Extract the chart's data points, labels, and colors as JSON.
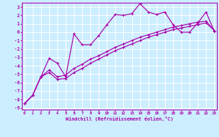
{
  "xlabel": "Windchill (Refroidissement éolien,°C)",
  "xlim": [
    -0.3,
    23.3
  ],
  "ylim": [
    -9.2,
    3.5
  ],
  "xticks": [
    0,
    1,
    2,
    3,
    4,
    5,
    6,
    7,
    8,
    9,
    10,
    11,
    12,
    13,
    14,
    15,
    16,
    17,
    18,
    19,
    20,
    21,
    22,
    23
  ],
  "yticks": [
    3,
    2,
    1,
    0,
    -1,
    -2,
    -3,
    -4,
    -5,
    -6,
    -7,
    -8,
    -9
  ],
  "color": "#aa00aa",
  "bg_color": "#cceeff",
  "grid_color": "#ffffff",
  "line_smooth1_x": [
    0,
    1,
    2,
    3,
    4,
    5,
    6,
    7,
    8,
    9,
    10,
    11,
    12,
    13,
    14,
    15,
    16,
    17,
    18,
    19,
    20,
    21,
    22,
    23
  ],
  "line_smooth1_y": [
    -8.5,
    -7.5,
    -5.3,
    -4.8,
    -5.6,
    -5.5,
    -4.8,
    -4.3,
    -3.7,
    -3.2,
    -2.7,
    -2.2,
    -1.8,
    -1.4,
    -1.0,
    -0.6,
    -0.3,
    0.0,
    0.3,
    0.5,
    0.7,
    0.9,
    1.1,
    0.2
  ],
  "line_smooth2_x": [
    0,
    1,
    2,
    3,
    4,
    5,
    6,
    7,
    8,
    9,
    10,
    11,
    12,
    13,
    14,
    15,
    16,
    17,
    18,
    19,
    20,
    21,
    22,
    23
  ],
  "line_smooth2_y": [
    -8.5,
    -7.5,
    -5.3,
    -4.5,
    -5.3,
    -5.1,
    -4.3,
    -3.8,
    -3.2,
    -2.8,
    -2.3,
    -1.8,
    -1.4,
    -1.0,
    -0.6,
    -0.3,
    0.0,
    0.3,
    0.6,
    0.8,
    1.0,
    1.2,
    1.3,
    0.2
  ],
  "line_wiggly_x": [
    0,
    1,
    2,
    3,
    4,
    5,
    6,
    7,
    8,
    9,
    10,
    11,
    12,
    13,
    14,
    15,
    16,
    17,
    18,
    19,
    20,
    21,
    22,
    23
  ],
  "line_wiggly_y": [
    -8.5,
    -7.5,
    -5.3,
    -3.1,
    -3.7,
    -5.3,
    -0.2,
    -1.5,
    -1.5,
    -0.4,
    0.9,
    2.1,
    2.0,
    2.2,
    3.4,
    2.4,
    2.1,
    2.4,
    0.9,
    0.0,
    0.0,
    1.1,
    2.4,
    0.1
  ]
}
